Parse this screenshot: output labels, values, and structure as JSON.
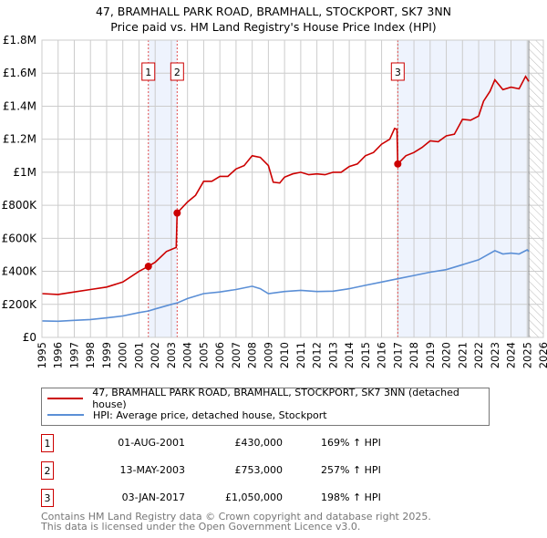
{
  "chart_data": {
    "type": "line",
    "title": "47, BRAMHALL PARK ROAD, BRAMHALL, STOCKPORT, SK7 3NN",
    "subtitle": "Price paid vs. HM Land Registry's House Price Index (HPI)",
    "xlim": [
      1995,
      2026
    ],
    "ylim": [
      0,
      1800000
    ],
    "y_ticks": [
      {
        "v": 0,
        "label": "£0"
      },
      {
        "v": 200000,
        "label": "£200K"
      },
      {
        "v": 400000,
        "label": "£400K"
      },
      {
        "v": 600000,
        "label": "£600K"
      },
      {
        "v": 800000,
        "label": "£800K"
      },
      {
        "v": 1000000,
        "label": "£1M"
      },
      {
        "v": 1200000,
        "label": "£1.2M"
      },
      {
        "v": 1400000,
        "label": "£1.4M"
      },
      {
        "v": 1600000,
        "label": "£1.6M"
      },
      {
        "v": 1800000,
        "label": "£1.8M"
      }
    ],
    "x_ticks": [
      1995,
      1996,
      1997,
      1998,
      1999,
      2000,
      2001,
      2002,
      2003,
      2004,
      2005,
      2006,
      2007,
      2008,
      2009,
      2010,
      2011,
      2012,
      2013,
      2014,
      2015,
      2016,
      2017,
      2018,
      2019,
      2020,
      2021,
      2022,
      2023,
      2024,
      2025,
      2026
    ],
    "grid": true,
    "shaded_ranges": [
      [
        2001.58,
        2003.36
      ],
      [
        2017.0,
        2025.1
      ]
    ],
    "hatched_from": 2025.1,
    "series": [
      {
        "name": "47, BRAMHALL PARK ROAD, BRAMHALL, STOCKPORT, SK7 3NN (detached house)",
        "color": "#cc0000",
        "x": [
          1995,
          1996,
          1997,
          1998,
          1999,
          2000,
          2001,
          2001.58,
          2002,
          2002.7,
          2003.3,
          2003.36,
          2004,
          2004.5,
          2005,
          2005.5,
          2006,
          2006.5,
          2007,
          2007.5,
          2008,
          2008.5,
          2009,
          2009.3,
          2009.7,
          2010,
          2010.5,
          2011,
          2011.5,
          2012,
          2012.5,
          2013,
          2013.5,
          2014,
          2014.5,
          2015,
          2015.5,
          2016,
          2016.5,
          2016.8,
          2016.95,
          2017.0,
          2017.5,
          2018,
          2018.5,
          2019,
          2019.5,
          2020,
          2020.5,
          2021,
          2021.5,
          2022,
          2022.3,
          2022.7,
          2023,
          2023.5,
          2024,
          2024.5,
          2024.9,
          2025.1
        ],
        "y": [
          265000,
          260000,
          275000,
          290000,
          305000,
          335000,
          400000,
          430000,
          455000,
          520000,
          545000,
          753000,
          820000,
          860000,
          945000,
          945000,
          975000,
          975000,
          1020000,
          1040000,
          1100000,
          1090000,
          1040000,
          940000,
          935000,
          970000,
          990000,
          1000000,
          985000,
          990000,
          985000,
          1000000,
          1000000,
          1035000,
          1050000,
          1100000,
          1120000,
          1170000,
          1200000,
          1265000,
          1260000,
          1050000,
          1100000,
          1120000,
          1150000,
          1190000,
          1185000,
          1220000,
          1230000,
          1320000,
          1315000,
          1340000,
          1430000,
          1490000,
          1560000,
          1500000,
          1515000,
          1505000,
          1580000,
          1550000
        ]
      },
      {
        "name": "HPI: Average price, detached house, Stockport",
        "color": "#5b8fd6",
        "x": [
          1995,
          1996,
          1997,
          1998,
          1999,
          2000,
          2001,
          2001.6,
          2002,
          2003,
          2003.4,
          2004,
          2005,
          2006,
          2007,
          2008,
          2008.5,
          2009,
          2010,
          2011,
          2012,
          2013,
          2014,
          2015,
          2016,
          2017,
          2018,
          2019,
          2020,
          2021,
          2022,
          2023,
          2023.5,
          2024,
          2024.5,
          2025,
          2025.1
        ],
        "y": [
          100000,
          98000,
          103000,
          108000,
          118000,
          130000,
          150000,
          160000,
          172000,
          200000,
          210000,
          235000,
          265000,
          275000,
          290000,
          310000,
          295000,
          265000,
          278000,
          285000,
          278000,
          280000,
          295000,
          315000,
          335000,
          355000,
          375000,
          395000,
          410000,
          440000,
          470000,
          525000,
          505000,
          510000,
          505000,
          530000,
          520000
        ]
      }
    ],
    "sales": [
      {
        "n": "1",
        "x": 2001.58,
        "y": 430000,
        "date": "01-AUG-2001",
        "price": "£430,000",
        "hpi": "169% ↑ HPI"
      },
      {
        "n": "2",
        "x": 2003.36,
        "y": 753000,
        "date": "13-MAY-2003",
        "price": "£753,000",
        "hpi": "257% ↑ HPI"
      },
      {
        "n": "3",
        "x": 2017.0,
        "y": 1050000,
        "date": "03-JAN-2017",
        "price": "£1,050,000",
        "hpi": "198% ↑ HPI"
      }
    ]
  },
  "footer": {
    "line1": "Contains HM Land Registry data © Crown copyright and database right 2025.",
    "line2": "This data is licensed under the Open Government Licence v3.0."
  }
}
